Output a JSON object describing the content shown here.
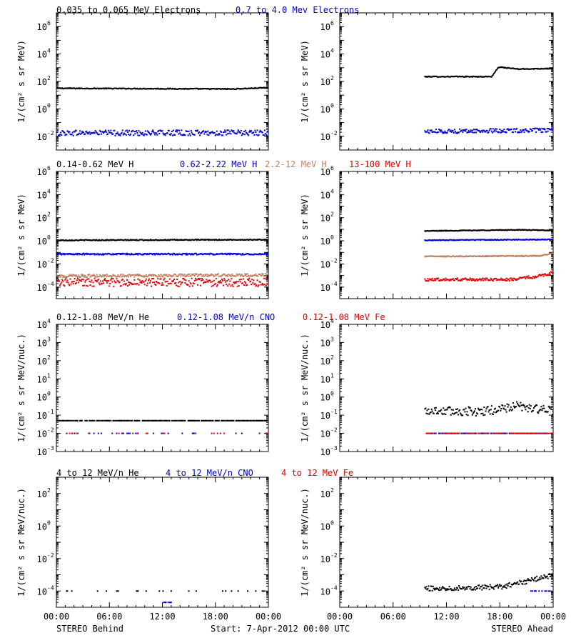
{
  "colors": {
    "black": "#000000",
    "blue": "#0000d0",
    "tan": "#c08060",
    "red": "#e00000"
  },
  "footer": {
    "left": "STEREO Behind",
    "center": "Start:  7-Apr-2012 00:00 UTC",
    "right": "STEREO Ahead"
  },
  "chart_data": [
    {
      "type": "scatter",
      "row": 0,
      "side": "behind",
      "ylabel": "1/(cm² s sr MeV)",
      "ylog": true,
      "ylim_exp": [
        -3,
        7
      ],
      "ytick_exps": [
        -2,
        0,
        2,
        4,
        6
      ],
      "xlim_hours": [
        0,
        24
      ],
      "xticks": [
        "00:00",
        "06:00",
        "12:00",
        "18:00",
        "00:00"
      ],
      "legend": [
        {
          "label": "0.035 to 0.065 MeV Electrons",
          "color": "black"
        },
        {
          "label": "0.7 to 4.0 Mev Electrons",
          "color": "blue"
        }
      ],
      "series": [
        {
          "color": "black",
          "start_hour": 0,
          "end_hour": 24,
          "points": [
            [
              0,
              1.5
            ],
            [
              20,
              1.45
            ],
            [
              24,
              1.55
            ]
          ],
          "scatter": 0.03
        },
        {
          "color": "blue",
          "start_hour": 0,
          "end_hour": 24,
          "points": [
            [
              0,
              -1.75
            ],
            [
              24,
              -1.75
            ]
          ],
          "scatter": 0.2
        }
      ]
    },
    {
      "type": "scatter",
      "row": 0,
      "side": "ahead",
      "ylabel": "1/(cm² s sr MeV)",
      "ylog": true,
      "ylim_exp": [
        -3,
        7
      ],
      "ytick_exps": [
        -2,
        0,
        2,
        4,
        6
      ],
      "xlim_hours": [
        0,
        24
      ],
      "xticks": [
        "00:00",
        "06:00",
        "12:00",
        "18:00",
        "00:00"
      ],
      "legend": [],
      "series": [
        {
          "color": "black",
          "start_hour": 9.5,
          "end_hour": 24,
          "points": [
            [
              9.5,
              2.35
            ],
            [
              17,
              2.35
            ],
            [
              17.8,
              3.05
            ],
            [
              20,
              2.9
            ],
            [
              24,
              2.95
            ]
          ],
          "scatter": 0.03
        },
        {
          "color": "blue",
          "start_hour": 9.5,
          "end_hour": 24,
          "points": [
            [
              9.5,
              -1.65
            ],
            [
              24,
              -1.55
            ]
          ],
          "scatter": 0.15
        }
      ]
    },
    {
      "type": "scatter",
      "row": 1,
      "side": "behind",
      "ylabel": "1/(cm² s sr MeV)",
      "ylog": true,
      "ylim_exp": [
        -5,
        6
      ],
      "ytick_exps": [
        -4,
        -2,
        0,
        2,
        4,
        6
      ],
      "xlim_hours": [
        0,
        24
      ],
      "xticks": [
        "00:00",
        "06:00",
        "12:00",
        "18:00",
        "00:00"
      ],
      "legend": [
        {
          "label": "0.14-0.62 MeV H",
          "color": "black"
        },
        {
          "label": "0.62-2.22 MeV H",
          "color": "blue"
        },
        {
          "label": "2.2-12 MeV H",
          "color": "tan"
        },
        {
          "label": "13-100 MeV H",
          "color": "red"
        }
      ],
      "series": [
        {
          "color": "black",
          "start_hour": 0,
          "end_hour": 24,
          "points": [
            [
              0,
              0.05
            ],
            [
              24,
              0.1
            ]
          ],
          "scatter": 0.04
        },
        {
          "color": "blue",
          "start_hour": 0,
          "end_hour": 24,
          "points": [
            [
              0,
              -1.15
            ],
            [
              24,
              -1.15
            ]
          ],
          "scatter": 0.06
        },
        {
          "color": "tan",
          "start_hour": 0,
          "end_hour": 24,
          "points": [
            [
              0,
              -3.05
            ],
            [
              24,
              -2.95
            ]
          ],
          "scatter": 0.12
        },
        {
          "color": "red",
          "start_hour": 0,
          "end_hour": 24,
          "points": [
            [
              0,
              -3.6
            ],
            [
              24,
              -3.6
            ]
          ],
          "scatter": 0.35
        }
      ]
    },
    {
      "type": "scatter",
      "row": 1,
      "side": "ahead",
      "ylabel": "1/(cm² s sr MeV)",
      "ylog": true,
      "ylim_exp": [
        -5,
        6
      ],
      "ytick_exps": [
        -4,
        -2,
        0,
        2,
        4,
        6
      ],
      "xlim_hours": [
        0,
        24
      ],
      "xticks": [
        "00:00",
        "06:00",
        "12:00",
        "18:00",
        "00:00"
      ],
      "legend": [],
      "series": [
        {
          "color": "black",
          "start_hour": 9.5,
          "end_hour": 24,
          "points": [
            [
              9.5,
              0.85
            ],
            [
              20,
              0.95
            ],
            [
              24,
              0.9
            ]
          ],
          "scatter": 0.03
        },
        {
          "color": "blue",
          "start_hour": 9.5,
          "end_hour": 24,
          "points": [
            [
              9.5,
              0.05
            ],
            [
              24,
              0.12
            ]
          ],
          "scatter": 0.03
        },
        {
          "color": "tan",
          "start_hour": 9.5,
          "end_hour": 24,
          "points": [
            [
              9.5,
              -1.35
            ],
            [
              22.5,
              -1.3
            ],
            [
              24,
              -1.05
            ]
          ],
          "scatter": 0.04
        },
        {
          "color": "red",
          "start_hour": 9.5,
          "end_hour": 24,
          "points": [
            [
              9.5,
              -3.35
            ],
            [
              19,
              -3.35
            ],
            [
              22,
              -3.1
            ],
            [
              24,
              -2.75
            ]
          ],
          "scatter": 0.12
        }
      ]
    },
    {
      "type": "scatter",
      "row": 2,
      "side": "behind",
      "ylabel": "1/(cm² s sr MeV/nuc.)",
      "ylog": true,
      "ylim_exp": [
        -3,
        4
      ],
      "ytick_exps": [
        -3,
        -2,
        -1,
        0,
        1,
        2,
        3,
        4
      ],
      "xlim_hours": [
        0,
        24
      ],
      "xticks": [
        "00:00",
        "06:00",
        "12:00",
        "18:00",
        "00:00"
      ],
      "legend": [
        {
          "label": "0.12-1.08 MeV/n He",
          "color": "black"
        },
        {
          "label": "0.12-1.08 MeV/n CNO",
          "color": "blue"
        },
        {
          "label": "0.12-1.08 MeV Fe",
          "color": "red"
        }
      ],
      "series": [
        {
          "color": "black",
          "start_hour": 0,
          "end_hour": 24,
          "points": [
            [
              0,
              -1.3
            ],
            [
              24,
              -1.3
            ]
          ],
          "scatter": 0.0,
          "sparse": 0.7
        },
        {
          "color": "blue",
          "start_hour": 0,
          "end_hour": 24,
          "points": [
            [
              0,
              -2.0
            ],
            [
              24,
              -2.0
            ]
          ],
          "scatter": 0.0,
          "sparse": 0.08
        },
        {
          "color": "red",
          "start_hour": 0,
          "end_hour": 24,
          "points": [
            [
              0,
              -2.0
            ],
            [
              24,
              -2.0
            ]
          ],
          "scatter": 0.0,
          "sparse": 0.1
        }
      ]
    },
    {
      "type": "scatter",
      "row": 2,
      "side": "ahead",
      "ylabel": "1/(cm² s sr MeV/nuc.)",
      "ylog": true,
      "ylim_exp": [
        -3,
        4
      ],
      "ytick_exps": [
        -3,
        -2,
        -1,
        0,
        1,
        2,
        3,
        4
      ],
      "xlim_hours": [
        0,
        24
      ],
      "xticks": [
        "00:00",
        "06:00",
        "12:00",
        "18:00",
        "00:00"
      ],
      "legend": [],
      "series": [
        {
          "color": "black",
          "start_hour": 9.5,
          "end_hour": 24,
          "points": [
            [
              9.5,
              -0.75
            ],
            [
              16,
              -0.8
            ],
            [
              20,
              -0.5
            ],
            [
              24,
              -0.8
            ]
          ],
          "scatter": 0.25
        },
        {
          "color": "blue",
          "start_hour": 9.5,
          "end_hour": 24,
          "points": [
            [
              9.5,
              -2.0
            ],
            [
              24,
              -2.0
            ]
          ],
          "scatter": 0.0,
          "sparse": 0.45
        },
        {
          "color": "red",
          "start_hour": 9.5,
          "end_hour": 24,
          "points": [
            [
              9.5,
              -2.0
            ],
            [
              24,
              -2.0
            ]
          ],
          "scatter": 0.0,
          "sparse": 0.45
        }
      ]
    },
    {
      "type": "scatter",
      "row": 3,
      "side": "behind",
      "ylabel": "1/(cm² s sr MeV/nuc.)",
      "ylog": true,
      "ylim_exp": [
        -5,
        3
      ],
      "ytick_exps": [
        -4,
        -2,
        0,
        2
      ],
      "xlim_hours": [
        0,
        24
      ],
      "xticks": [
        "00:00",
        "06:00",
        "12:00",
        "18:00",
        "00:00"
      ],
      "legend": [
        {
          "label": "4 to 12 MeV/n He",
          "color": "black"
        },
        {
          "label": "4 to 12 MeV/n CNO",
          "color": "blue"
        },
        {
          "label": "4 to 12 MeV Fe",
          "color": "red"
        }
      ],
      "series": [
        {
          "color": "black",
          "start_hour": 0,
          "end_hour": 24,
          "points": [
            [
              0,
              -4.0
            ],
            [
              24,
              -4.0
            ]
          ],
          "scatter": 0.0,
          "sparse": 0.07
        },
        {
          "color": "blue",
          "start_hour": 12,
          "end_hour": 13,
          "points": [
            [
              12,
              -4.7
            ],
            [
              13,
              -4.7
            ]
          ],
          "scatter": 0.0,
          "sparse": 0.5
        }
      ]
    },
    {
      "type": "scatter",
      "row": 3,
      "side": "ahead",
      "ylabel": "1/(cm² s sr MeV/nuc.)",
      "ylog": true,
      "ylim_exp": [
        -5,
        3
      ],
      "ytick_exps": [
        -4,
        -2,
        0,
        2
      ],
      "xlim_hours": [
        0,
        24
      ],
      "xticks": [
        "00:00",
        "06:00",
        "12:00",
        "18:00",
        "00:00"
      ],
      "legend": [],
      "series": [
        {
          "color": "black",
          "start_hour": 9.5,
          "end_hour": 24,
          "points": [
            [
              9.5,
              -3.85
            ],
            [
              18,
              -3.75
            ],
            [
              21,
              -3.4
            ],
            [
              24,
              -3.0
            ]
          ],
          "scatter": 0.15
        },
        {
          "color": "blue",
          "start_hour": 21,
          "end_hour": 24,
          "points": [
            [
              21,
              -4.0
            ],
            [
              24,
              -4.0
            ]
          ],
          "scatter": 0.0,
          "sparse": 0.25
        }
      ]
    }
  ]
}
